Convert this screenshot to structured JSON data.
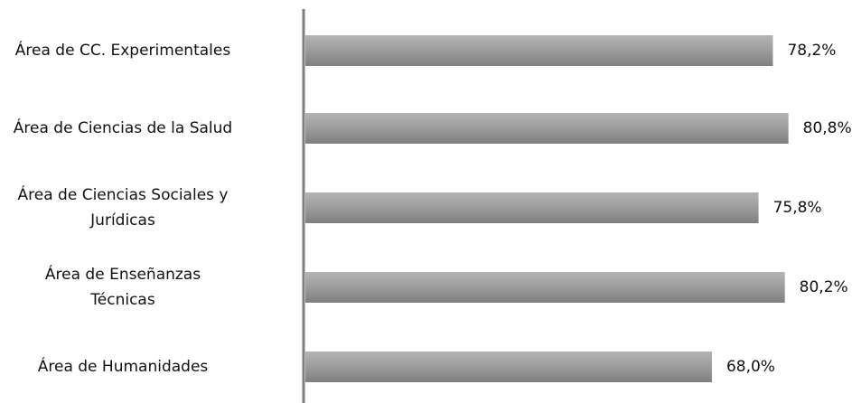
{
  "chart_data": {
    "type": "bar",
    "orientation": "horizontal",
    "categories": [
      "Área de CC. Experimentales",
      "Área de Ciencias de la Salud",
      "Área de Ciencias Sociales y\nJurídicas",
      "Área de Enseñanzas\nTécnicas",
      "Área de Humanidades"
    ],
    "values": [
      78.2,
      80.8,
      75.8,
      80.2,
      68.0
    ],
    "value_labels": [
      "78,2%",
      "80,8%",
      "75,8%",
      "80,2%",
      "68,0%"
    ],
    "title": "",
    "xlabel": "",
    "ylabel": "",
    "xlim": [
      0,
      100
    ],
    "grid": false,
    "legend": "none",
    "colors": {
      "bar_top": "#b4b4b4",
      "bar_mid": "#9c9c9c",
      "bar_bottom": "#7f7f7f",
      "axis": "#7f7f7f"
    }
  }
}
